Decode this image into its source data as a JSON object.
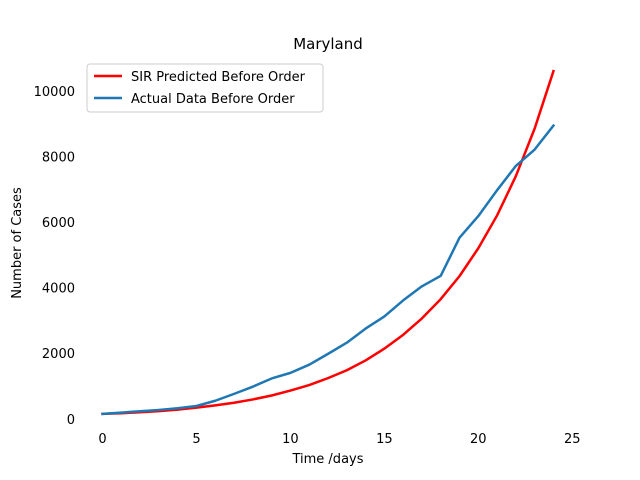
{
  "chart_data": {
    "type": "line",
    "title": "Maryland",
    "xlabel": "Time /days",
    "ylabel": "Number of Cases",
    "xlim": [
      -1.2,
      25.2
    ],
    "ylim": [
      -250,
      11000
    ],
    "xticks": [
      0,
      5,
      10,
      15,
      20,
      25
    ],
    "yticks": [
      0,
      2000,
      4000,
      6000,
      8000,
      10000
    ],
    "grid": false,
    "legend_position": "top-left",
    "x": [
      0,
      1,
      2,
      3,
      4,
      5,
      6,
      7,
      8,
      9,
      10,
      11,
      12,
      13,
      14,
      15,
      16,
      17,
      18,
      19,
      20,
      21,
      22,
      23,
      24
    ],
    "series": [
      {
        "name": "SIR Predicted Before Order",
        "color": "#ff0000",
        "values": [
          150,
          170,
          200,
          235,
          280,
          340,
          410,
          490,
          590,
          710,
          860,
          1030,
          1240,
          1480,
          1780,
          2140,
          2560,
          3060,
          3650,
          4350,
          5200,
          6200,
          7400,
          8850,
          10600
        ]
      },
      {
        "name": "Actual Data Before Order",
        "color": "#1f77b4",
        "values": [
          150,
          190,
          230,
          270,
          320,
          390,
          550,
          760,
          980,
          1230,
          1400,
          1650,
          1980,
          2320,
          2750,
          3120,
          3610,
          4040,
          4360,
          5520,
          6180,
          6970,
          7710,
          8210,
          8940
        ]
      }
    ]
  }
}
